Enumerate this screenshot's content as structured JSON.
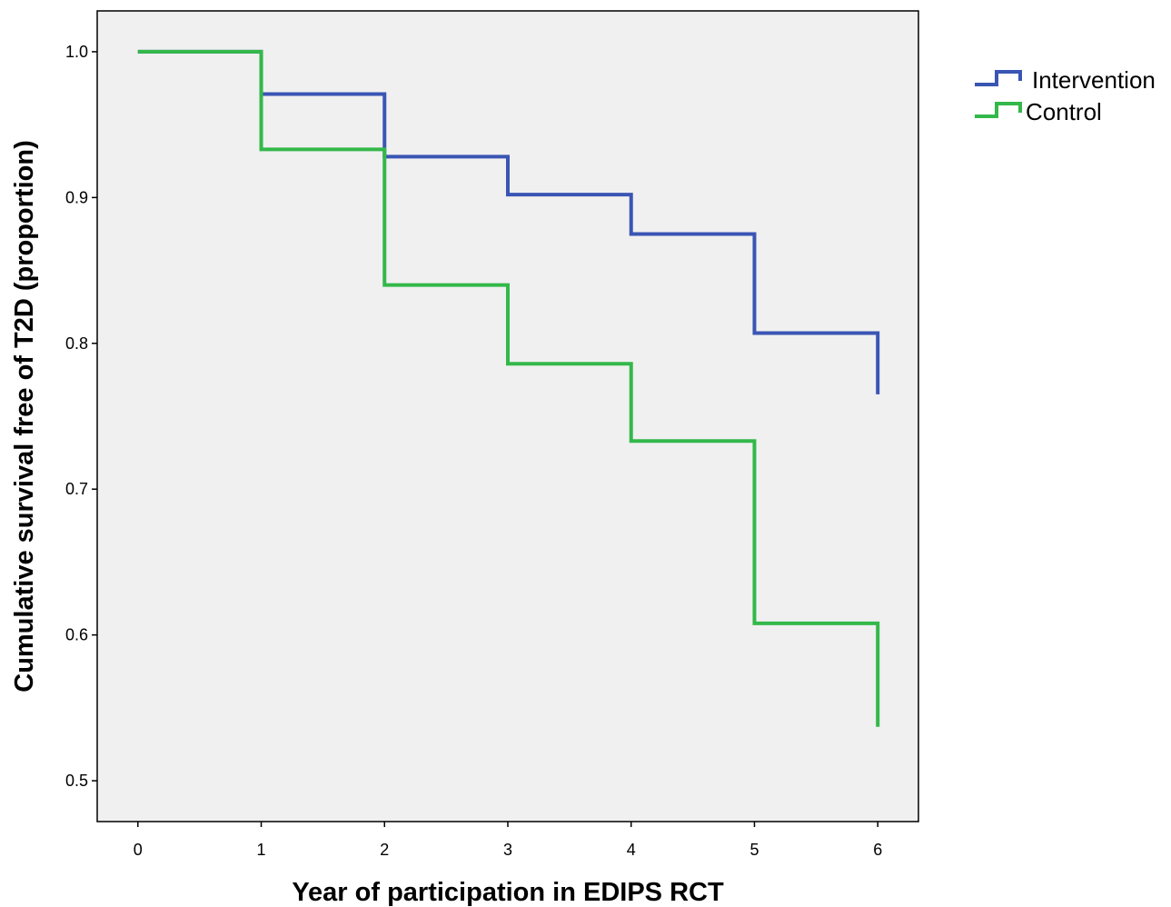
{
  "chart_data": {
    "type": "line",
    "step": true,
    "xlabel": "Year of participation in EDIPS RCT",
    "ylabel": "Cumulative survival free of T2D (proportion)",
    "xlim": [
      -0.33,
      6.33
    ],
    "ylim": [
      0.472,
      1.028
    ],
    "x_ticks": [
      0,
      1,
      2,
      3,
      4,
      5,
      6
    ],
    "y_ticks": [
      0.5,
      0.6,
      0.7,
      0.8,
      0.9,
      1.0
    ],
    "x_tick_labels": [
      "0",
      "1",
      "2",
      "3",
      "4",
      "5",
      "6"
    ],
    "y_tick_labels": [
      "0.5",
      "0.6",
      "0.7",
      "0.8",
      "0.9",
      "1.0"
    ],
    "grid": false,
    "plot_background": "#f0f0f0",
    "legend_position": "top-right",
    "series": [
      {
        "name": "Intervention",
        "color": "#3a55b4",
        "x": [
          0,
          1,
          2,
          3,
          4,
          5,
          6
        ],
        "y": [
          1.0,
          0.971,
          0.928,
          0.902,
          0.875,
          0.807,
          0.765
        ]
      },
      {
        "name": "Control",
        "color": "#33b84a",
        "x": [
          0,
          1,
          2,
          3,
          4,
          5,
          6
        ],
        "y": [
          1.0,
          0.933,
          0.84,
          0.786,
          0.733,
          0.608,
          0.537
        ]
      }
    ]
  }
}
